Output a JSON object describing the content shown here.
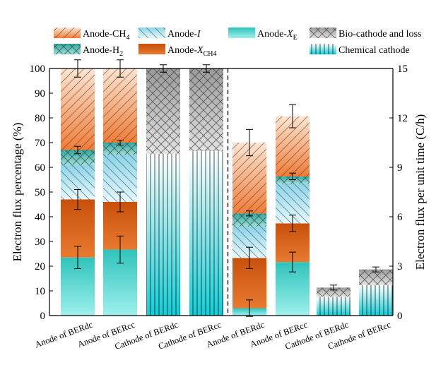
{
  "chart_data": {
    "type": "bar",
    "stacked": true,
    "categories": [
      "Anode of BERdc",
      "Anode of BERcc",
      "Cathode of BERdc",
      "Cathode of BERcc",
      "Anode of BERdc",
      "Anode of BERcc",
      "Cathode of BERdc",
      "Cathode of BERcc"
    ],
    "left_axis": {
      "label": "Electron flux percentage (%)",
      "ylim": [
        0,
        100
      ],
      "ticks": [
        0,
        10,
        20,
        30,
        40,
        50,
        60,
        70,
        80,
        90,
        100
      ],
      "applies_to_bars": [
        0,
        1,
        2,
        3
      ]
    },
    "right_axis": {
      "label": "Electron flux per unit time (C/h)",
      "ylim": [
        0,
        15
      ],
      "ticks": [
        0,
        3,
        6,
        9,
        12,
        15
      ],
      "applies_to_bars": [
        4,
        5,
        6,
        7
      ]
    },
    "divider_after_bar": 3,
    "legend": {
      "placement": "top",
      "entries": [
        {
          "key": "anode_ch4",
          "text": "Anode-CH",
          "sub": "4",
          "italic": false
        },
        {
          "key": "anode_i",
          "text": "Anode-",
          "italic_part": "I"
        },
        {
          "key": "anode_xe",
          "text": "Anode-",
          "italic_part": "X",
          "sub": "E"
        },
        {
          "key": "bio_cathode",
          "text": "Bio-cathode and loss"
        },
        {
          "key": "anode_h2",
          "text": "Anode-H",
          "sub": "2"
        },
        {
          "key": "anode_xch4",
          "text": "Anode-",
          "italic_part": "X",
          "sub": "CH4"
        },
        {
          "key": "chem_cathode",
          "text": "Chemical cathode"
        }
      ]
    },
    "colors": {
      "anode_xe": "#3ec9c1",
      "anode_xch4": "#d95f0e",
      "anode_i": "#9bd7e8",
      "anode_h2": "#3aa9a0",
      "anode_ch4": "#f08a4b",
      "bio_cathode": "#a8a8a8",
      "chem_cathode": "#22cfd6"
    },
    "series": [
      {
        "key": "anode_xe",
        "name": "Anode-XE",
        "values": [
          23.5,
          26.7,
          0,
          0,
          0.45,
          3.25,
          0,
          0
        ],
        "err": [
          4.5,
          5.5,
          null,
          null,
          0.5,
          0.6,
          null,
          null
        ]
      },
      {
        "key": "anode_xch4",
        "name": "Anode-XCH4",
        "values": [
          23.5,
          19.3,
          0,
          0,
          3.05,
          2.35,
          0,
          0
        ],
        "err": [
          4.0,
          4.0,
          null,
          null,
          0.65,
          0.5,
          null,
          null
        ]
      },
      {
        "key": "anode_i",
        "name": "Anode-I",
        "values": [
          14.0,
          19.0,
          0,
          0,
          1.9,
          2.4,
          0,
          0
        ],
        "err": [
          null,
          null,
          null,
          null,
          null,
          null,
          null,
          null
        ]
      },
      {
        "key": "anode_h2",
        "name": "Anode-H2",
        "values": [
          6.0,
          5.0,
          0,
          0,
          0.8,
          0.45,
          0,
          0
        ],
        "err": [
          1.5,
          1.0,
          null,
          null,
          0.15,
          0.2,
          null,
          null
        ]
      },
      {
        "key": "anode_ch4",
        "name": "Anode-CH4",
        "values": [
          33.0,
          30.0,
          0,
          0,
          4.3,
          3.65,
          0,
          0
        ],
        "err": [
          3.5,
          3.5,
          null,
          null,
          0.8,
          0.7,
          null,
          null
        ]
      },
      {
        "key": "chem_cathode",
        "name": "Chemical cathode",
        "values": [
          0,
          0,
          65.5,
          66.5,
          0,
          0,
          1.15,
          1.85
        ],
        "err": [
          null,
          null,
          null,
          null,
          null,
          null,
          null,
          null
        ]
      },
      {
        "key": "bio_cathode",
        "name": "Bio-cathode and loss",
        "values": [
          0,
          0,
          34.5,
          33.5,
          0,
          0,
          0.55,
          0.95
        ],
        "err": [
          null,
          null,
          1.5,
          1.5,
          null,
          null,
          0.15,
          0.15
        ]
      }
    ]
  }
}
